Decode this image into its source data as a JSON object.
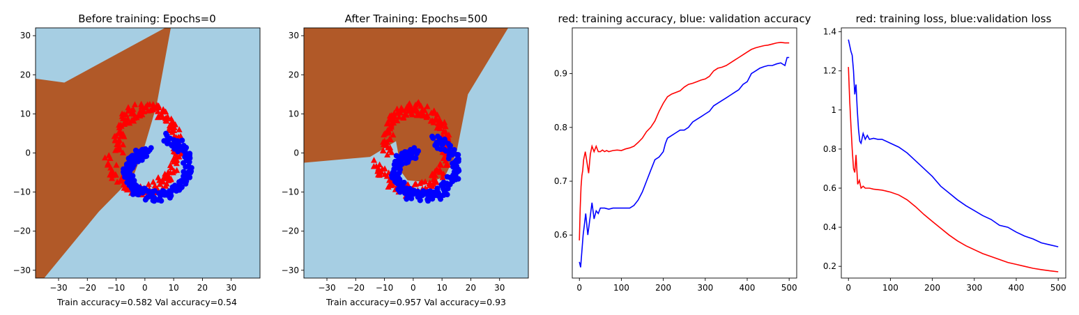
{
  "colors": {
    "region_class0": "#a6cee3",
    "region_class1": "#b15928",
    "class0_points": "#0000ff",
    "class1_points": "#ff0000",
    "train_line": "#ff0000",
    "val_line": "#0000ff"
  },
  "chart_data": [
    {
      "type": "scatter",
      "title": "Before training: Epochs=0",
      "xlabel": "Train accuracy=0.582 Val accuracy=0.54",
      "xlim": [
        -38,
        40
      ],
      "ylim": [
        -32,
        32
      ],
      "xticks": [
        -30,
        -20,
        -10,
        0,
        10,
        20,
        30
      ],
      "yticks": [
        -30,
        -20,
        -10,
        0,
        10,
        20,
        30
      ],
      "decision_region_class1": [
        [
          -38,
          -32
        ],
        [
          -38,
          19
        ],
        [
          -28,
          18
        ],
        [
          7,
          32
        ],
        [
          9,
          32
        ],
        [
          4,
          12
        ],
        [
          0,
          2
        ],
        [
          -4,
          -6
        ],
        [
          -16,
          -15
        ],
        [
          -35,
          -32
        ]
      ],
      "series": [
        {
          "marker": "triangle",
          "spiral": "outer"
        },
        {
          "marker": "circle",
          "spiral": "inner"
        }
      ]
    },
    {
      "type": "scatter",
      "title": "After Training: Epochs=500",
      "xlabel": "Train accuracy=0.957 Val accuracy=0.93",
      "xlim": [
        -38,
        40
      ],
      "ylim": [
        -32,
        32
      ],
      "xticks": [
        -30,
        -20,
        -10,
        0,
        10,
        20,
        30
      ],
      "yticks": [
        -30,
        -20,
        -10,
        0,
        10,
        20,
        30
      ],
      "decision_region_class1": [
        [
          -38,
          32
        ],
        [
          -38,
          -2.5
        ],
        [
          -15,
          -1
        ],
        [
          -6,
          3
        ],
        [
          -4,
          -5
        ],
        [
          -2,
          -7
        ],
        [
          6,
          -7.5
        ],
        [
          11,
          -6
        ],
        [
          15,
          0
        ],
        [
          19,
          15
        ],
        [
          33,
          32
        ]
      ],
      "series": [
        {
          "marker": "triangle",
          "spiral": "outer"
        },
        {
          "marker": "circle",
          "spiral": "inner"
        }
      ]
    },
    {
      "type": "line",
      "title": "red: training accuracy, blue: validation accuracy",
      "xlim": [
        -17,
        518
      ],
      "ylim": [
        0.52,
        0.985
      ],
      "xticks": [
        0,
        100,
        200,
        300,
        400,
        500
      ],
      "yticks": [
        0.6,
        0.7,
        0.8,
        0.9
      ],
      "series": [
        {
          "color": "red",
          "x": [
            0,
            2,
            4,
            6,
            8,
            10,
            14,
            18,
            22,
            26,
            30,
            35,
            40,
            45,
            50,
            55,
            60,
            65,
            70,
            80,
            90,
            100,
            110,
            120,
            130,
            140,
            150,
            160,
            170,
            180,
            190,
            200,
            210,
            220,
            230,
            240,
            250,
            260,
            270,
            280,
            290,
            300,
            310,
            320,
            330,
            340,
            350,
            360,
            370,
            380,
            390,
            400,
            410,
            420,
            430,
            440,
            450,
            460,
            470,
            480,
            490,
            500
          ],
          "y": [
            0.59,
            0.65,
            0.69,
            0.71,
            0.72,
            0.74,
            0.755,
            0.735,
            0.715,
            0.75,
            0.765,
            0.755,
            0.765,
            0.755,
            0.755,
            0.758,
            0.755,
            0.757,
            0.755,
            0.757,
            0.758,
            0.757,
            0.76,
            0.762,
            0.765,
            0.772,
            0.78,
            0.792,
            0.8,
            0.812,
            0.83,
            0.845,
            0.857,
            0.862,
            0.865,
            0.868,
            0.875,
            0.88,
            0.882,
            0.885,
            0.888,
            0.89,
            0.895,
            0.905,
            0.91,
            0.912,
            0.915,
            0.92,
            0.925,
            0.93,
            0.935,
            0.94,
            0.945,
            0.948,
            0.95,
            0.952,
            0.953,
            0.955,
            0.957,
            0.958,
            0.957,
            0.957
          ]
        },
        {
          "color": "blue",
          "x": [
            0,
            3,
            6,
            9,
            12,
            15,
            20,
            25,
            30,
            35,
            40,
            45,
            50,
            60,
            70,
            80,
            90,
            100,
            110,
            120,
            130,
            140,
            150,
            155,
            160,
            165,
            170,
            180,
            190,
            200,
            205,
            210,
            220,
            230,
            240,
            250,
            260,
            270,
            280,
            290,
            300,
            310,
            320,
            330,
            340,
            350,
            360,
            370,
            380,
            390,
            400,
            410,
            420,
            430,
            440,
            450,
            460,
            470,
            480,
            490,
            495,
            500
          ],
          "y": [
            0.55,
            0.54,
            0.57,
            0.6,
            0.62,
            0.64,
            0.6,
            0.63,
            0.66,
            0.63,
            0.645,
            0.64,
            0.65,
            0.65,
            0.648,
            0.65,
            0.65,
            0.65,
            0.65,
            0.65,
            0.655,
            0.665,
            0.68,
            0.69,
            0.7,
            0.71,
            0.72,
            0.74,
            0.745,
            0.755,
            0.77,
            0.78,
            0.785,
            0.79,
            0.795,
            0.795,
            0.8,
            0.81,
            0.815,
            0.82,
            0.825,
            0.83,
            0.84,
            0.845,
            0.85,
            0.855,
            0.86,
            0.865,
            0.87,
            0.88,
            0.885,
            0.9,
            0.905,
            0.91,
            0.913,
            0.915,
            0.915,
            0.918,
            0.92,
            0.915,
            0.93,
            0.93
          ]
        }
      ]
    },
    {
      "type": "line",
      "title": "red: training loss, blue:validation loss",
      "xlim": [
        -17,
        518
      ],
      "ylim": [
        0.14,
        1.42
      ],
      "xticks": [
        0,
        100,
        200,
        300,
        400,
        500
      ],
      "yticks": [
        0.2,
        0.4,
        0.6,
        0.8,
        1.0,
        1.2,
        1.4
      ],
      "series": [
        {
          "color": "red",
          "x": [
            0,
            3,
            6,
            9,
            12,
            15,
            18,
            22,
            26,
            30,
            35,
            40,
            50,
            60,
            80,
            100,
            120,
            140,
            160,
            180,
            200,
            220,
            240,
            260,
            280,
            300,
            320,
            340,
            360,
            380,
            400,
            420,
            440,
            460,
            480,
            500
          ],
          "y": [
            1.22,
            1.05,
            0.92,
            0.8,
            0.7,
            0.68,
            0.77,
            0.62,
            0.64,
            0.6,
            0.61,
            0.6,
            0.6,
            0.595,
            0.59,
            0.58,
            0.565,
            0.54,
            0.505,
            0.465,
            0.43,
            0.395,
            0.36,
            0.33,
            0.305,
            0.285,
            0.265,
            0.25,
            0.235,
            0.22,
            0.21,
            0.2,
            0.19,
            0.183,
            0.177,
            0.172
          ]
        },
        {
          "color": "blue",
          "x": [
            0,
            3,
            6,
            9,
            12,
            15,
            18,
            21,
            24,
            27,
            30,
            35,
            40,
            45,
            50,
            60,
            70,
            80,
            100,
            120,
            140,
            160,
            180,
            200,
            220,
            240,
            260,
            280,
            300,
            320,
            340,
            360,
            380,
            400,
            420,
            440,
            460,
            480,
            500
          ],
          "y": [
            1.36,
            1.33,
            1.3,
            1.28,
            1.2,
            1.08,
            1.13,
            1.0,
            0.9,
            0.84,
            0.83,
            0.88,
            0.85,
            0.87,
            0.85,
            0.855,
            0.85,
            0.85,
            0.83,
            0.81,
            0.78,
            0.74,
            0.7,
            0.66,
            0.61,
            0.575,
            0.54,
            0.51,
            0.485,
            0.46,
            0.44,
            0.41,
            0.4,
            0.375,
            0.355,
            0.34,
            0.32,
            0.31,
            0.3
          ]
        }
      ]
    }
  ]
}
